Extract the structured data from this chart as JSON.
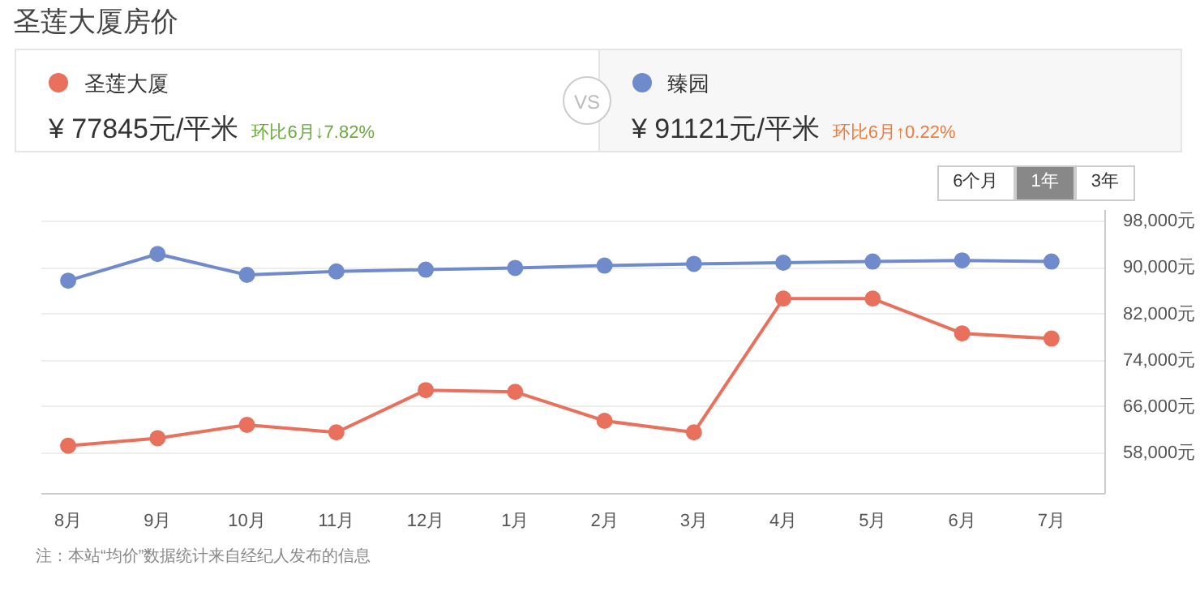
{
  "chart_data": {
    "type": "line",
    "title": "圣莲大厦房价",
    "categories": [
      "8月",
      "9月",
      "10月",
      "11月",
      "12月",
      "1月",
      "2月",
      "3月",
      "4月",
      "5月",
      "6月",
      "7月"
    ],
    "series": [
      {
        "name": "圣莲大厦",
        "color": "#e8705c",
        "values": [
          59300,
          60600,
          62900,
          61600,
          68900,
          68600,
          63600,
          61600,
          84700,
          84700,
          78700,
          77800
        ]
      },
      {
        "name": "臻园",
        "color": "#6f8bcc",
        "values": [
          87800,
          92400,
          88800,
          89400,
          89700,
          90000,
          90400,
          90700,
          90900,
          91100,
          91300,
          91100
        ]
      }
    ],
    "ylim": [
      51000,
      100000
    ],
    "yticks": [
      {
        "value": 58000,
        "label": "58,000元"
      },
      {
        "value": 66000,
        "label": "66,000元"
      },
      {
        "value": 74000,
        "label": "74,000元"
      },
      {
        "value": 82000,
        "label": "82,000元"
      },
      {
        "value": 90000,
        "label": "90,000元"
      },
      {
        "value": 98000,
        "label": "98,000元"
      }
    ],
    "grid": "y",
    "legend": "top",
    "marker": "circle",
    "line_style": "solid",
    "annotations": [
      "¥ 77845元/平米",
      "环比6月↓7.82%",
      "¥ 91121元/平米",
      "环比6月↑0.22%",
      "VS",
      "6个月",
      "1年",
      "3年",
      "注：本站“均价”数据统计来自经纪人发布的信息"
    ]
  }
}
